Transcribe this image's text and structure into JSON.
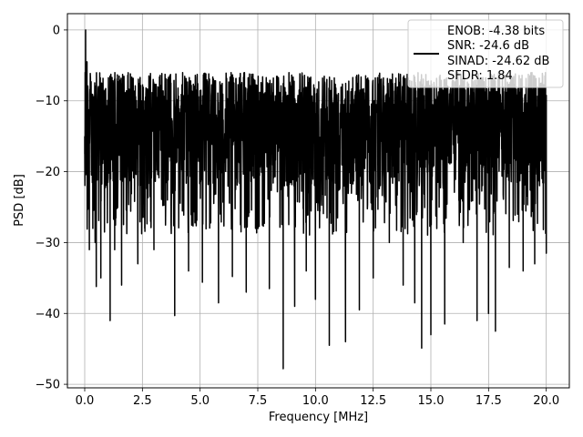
{
  "chart_data": {
    "type": "line",
    "title": "",
    "xlabel": "Frequency [MHz]",
    "ylabel": "PSD [dB]",
    "xlim": [
      -0.75,
      21.0
    ],
    "ylim": [
      -50.5,
      2.3
    ],
    "x_ticks": [
      0.0,
      2.5,
      5.0,
      7.5,
      10.0,
      12.5,
      15.0,
      17.5,
      20.0
    ],
    "x_tick_labels": [
      "0.0",
      "2.5",
      "5.0",
      "7.5",
      "10.0",
      "12.5",
      "15.0",
      "17.5",
      "20.0"
    ],
    "y_ticks": [
      0,
      -10,
      -20,
      -30,
      -40,
      -50
    ],
    "y_tick_labels": [
      "0",
      "−10",
      "−20",
      "−30",
      "−40",
      "−50"
    ],
    "grid": true,
    "legend_placement": "upper-right",
    "series_color": "#000000",
    "legend_entries": [
      "ENOB: -4.38 bits",
      "SNR: -24.6 dB",
      "SINAD: -24.62 dB",
      "SFDR: 1.84"
    ],
    "series": [
      {
        "x_range": [
          0.0,
          20.0
        ],
        "description_points": "dense noise floor roughly between -6 and -28 dB",
        "points": [
          [
            0.0,
            -17.5
          ],
          [
            0.02,
            -6.0
          ],
          [
            0.04,
            0.0
          ],
          [
            0.06,
            -8.0
          ],
          [
            0.1,
            -4.5
          ],
          [
            0.15,
            -20.0
          ],
          [
            0.2,
            -31.0
          ],
          [
            0.35,
            -28.0
          ],
          [
            0.45,
            -30.0
          ],
          [
            0.5,
            -36.2
          ],
          [
            0.7,
            -35.0
          ],
          [
            1.1,
            -41.0
          ],
          [
            1.3,
            -31.0
          ],
          [
            1.6,
            -36.0
          ],
          [
            2.3,
            -33.0
          ],
          [
            2.6,
            -28.0
          ],
          [
            3.0,
            -31.0
          ],
          [
            3.9,
            -40.3
          ],
          [
            4.5,
            -34.0
          ],
          [
            5.1,
            -35.6
          ],
          [
            5.8,
            -38.5
          ],
          [
            6.4,
            -34.8
          ],
          [
            7.0,
            -37.0
          ],
          [
            7.4,
            -28.0
          ],
          [
            8.0,
            -36.5
          ],
          [
            8.6,
            -47.8
          ],
          [
            9.1,
            -39.0
          ],
          [
            9.6,
            -34.0
          ],
          [
            10.0,
            -38.0
          ],
          [
            10.6,
            -44.5
          ],
          [
            11.3,
            -44.0
          ],
          [
            11.9,
            -39.5
          ],
          [
            12.5,
            -35.0
          ],
          [
            13.2,
            -30.0
          ],
          [
            13.8,
            -36.0
          ],
          [
            14.3,
            -38.5
          ],
          [
            14.6,
            -44.9
          ],
          [
            15.0,
            -43.0
          ],
          [
            15.6,
            -41.5
          ],
          [
            16.4,
            -30.0
          ],
          [
            17.0,
            -41.0
          ],
          [
            17.5,
            -40.0
          ],
          [
            17.8,
            -42.5
          ],
          [
            18.4,
            -33.5
          ],
          [
            19.0,
            -34.0
          ],
          [
            19.5,
            -33.0
          ],
          [
            20.0,
            -31.5
          ]
        ]
      }
    ]
  }
}
